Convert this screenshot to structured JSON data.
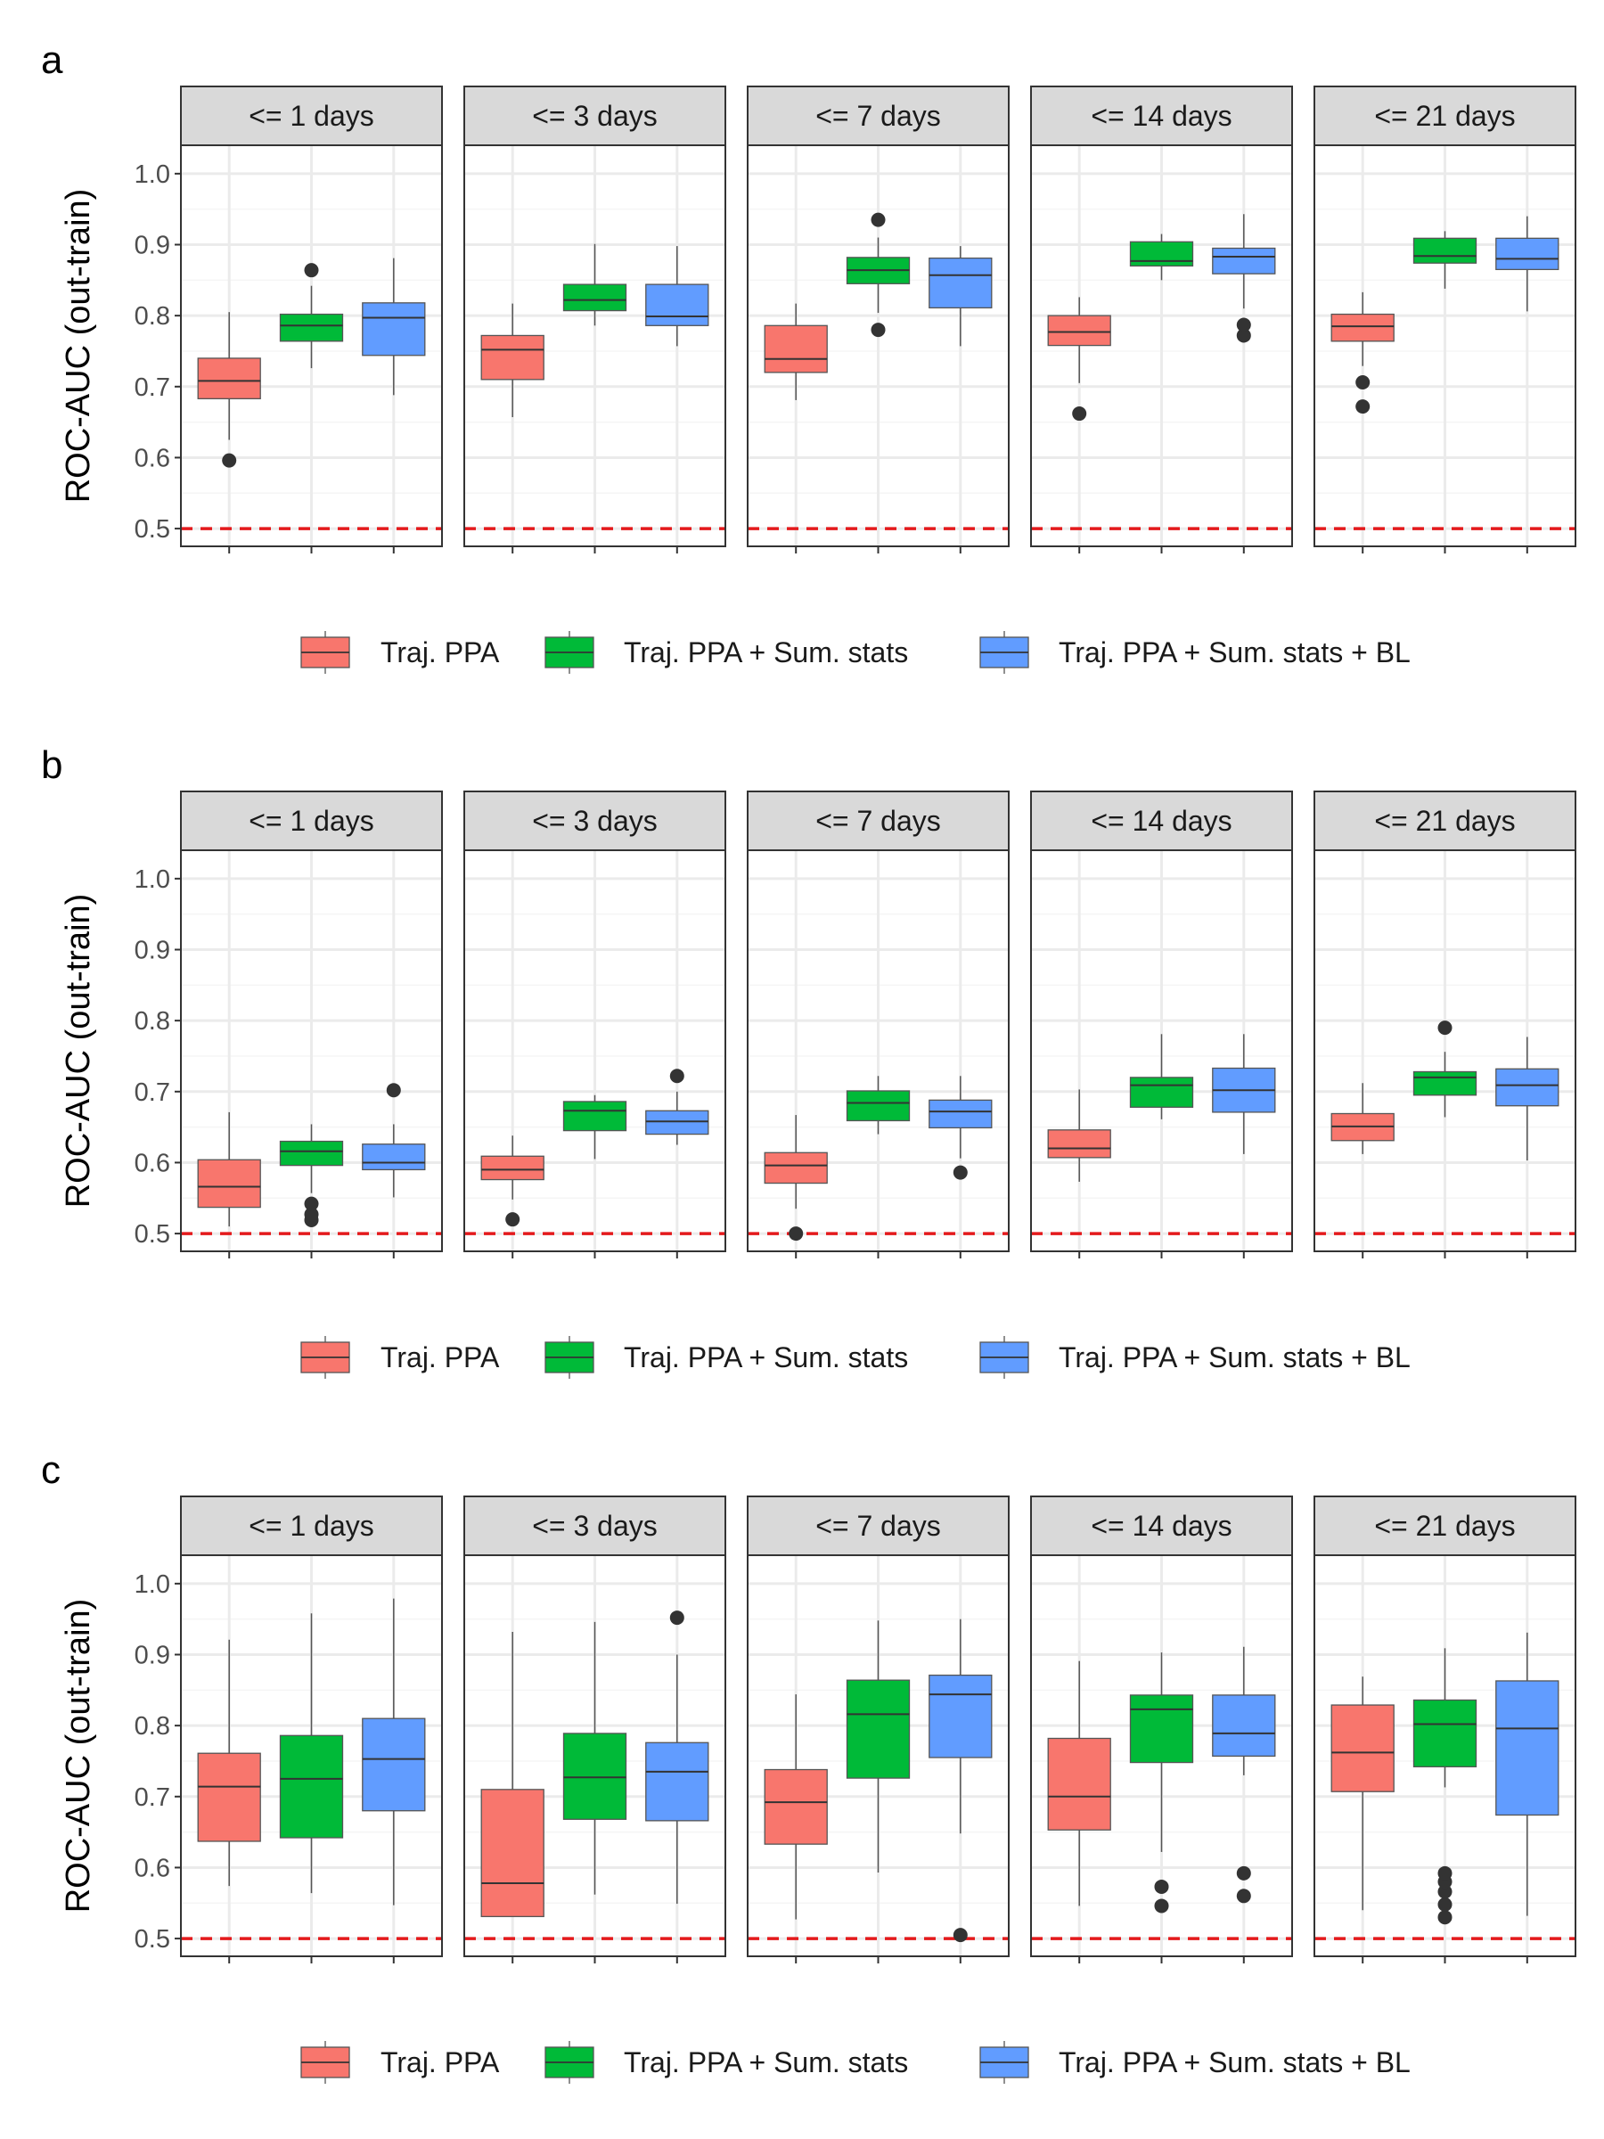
{
  "chart_data": [
    {
      "type": "boxplot",
      "panel_label": "a",
      "facets": [
        "<= 1 days",
        "<= 3 days",
        "<= 7 days",
        "<= 14 days",
        "<= 21 days"
      ],
      "groups": [
        "Traj. PPA",
        "Traj. PPA + Sum. stats",
        "Traj. PPA + Sum. stats + BL"
      ],
      "ylabel": "ROC-AUC (out-train)",
      "ylim": [
        0.475,
        1.04
      ],
      "yticks": [
        "0.5",
        "0.6",
        "0.7",
        "0.8",
        "0.9",
        "1.0"
      ],
      "reference_line": 0.5,
      "boxes": [
        [
          {
            "min": 0.625,
            "q1": 0.683,
            "median": 0.708,
            "q3": 0.74,
            "max": 0.805,
            "outliers": [
              0.596
            ]
          },
          {
            "min": 0.726,
            "q1": 0.764,
            "median": 0.786,
            "q3": 0.802,
            "max": 0.842,
            "outliers": [
              0.864
            ]
          },
          {
            "min": 0.688,
            "q1": 0.744,
            "median": 0.797,
            "q3": 0.818,
            "max": 0.881,
            "outliers": []
          }
        ],
        [
          {
            "min": 0.657,
            "q1": 0.71,
            "median": 0.752,
            "q3": 0.772,
            "max": 0.817,
            "outliers": []
          },
          {
            "min": 0.786,
            "q1": 0.807,
            "median": 0.822,
            "q3": 0.844,
            "max": 0.901,
            "outliers": []
          },
          {
            "min": 0.757,
            "q1": 0.786,
            "median": 0.799,
            "q3": 0.844,
            "max": 0.898,
            "outliers": []
          }
        ],
        [
          {
            "min": 0.681,
            "q1": 0.72,
            "median": 0.739,
            "q3": 0.786,
            "max": 0.817,
            "outliers": []
          },
          {
            "min": 0.804,
            "q1": 0.845,
            "median": 0.864,
            "q3": 0.882,
            "max": 0.91,
            "outliers": [
              0.78,
              0.935
            ]
          },
          {
            "min": 0.757,
            "q1": 0.811,
            "median": 0.857,
            "q3": 0.881,
            "max": 0.898,
            "outliers": []
          }
        ],
        [
          {
            "min": 0.705,
            "q1": 0.758,
            "median": 0.777,
            "q3": 0.8,
            "max": 0.826,
            "outliers": [
              0.662
            ]
          },
          {
            "min": 0.85,
            "q1": 0.87,
            "median": 0.877,
            "q3": 0.904,
            "max": 0.915,
            "outliers": []
          },
          {
            "min": 0.81,
            "q1": 0.859,
            "median": 0.883,
            "q3": 0.895,
            "max": 0.943,
            "outliers": [
              0.772,
              0.787
            ]
          }
        ],
        [
          {
            "min": 0.729,
            "q1": 0.764,
            "median": 0.785,
            "q3": 0.802,
            "max": 0.833,
            "outliers": [
              0.672,
              0.706
            ]
          },
          {
            "min": 0.838,
            "q1": 0.874,
            "median": 0.884,
            "q3": 0.909,
            "max": 0.919,
            "outliers": []
          },
          {
            "min": 0.806,
            "q1": 0.865,
            "median": 0.88,
            "q3": 0.909,
            "max": 0.94,
            "outliers": []
          }
        ]
      ]
    },
    {
      "type": "boxplot",
      "panel_label": "b",
      "facets": [
        "<= 1 days",
        "<= 3 days",
        "<= 7 days",
        "<= 14 days",
        "<= 21 days"
      ],
      "groups": [
        "Traj. PPA",
        "Traj. PPA + Sum. stats",
        "Traj. PPA + Sum. stats + BL"
      ],
      "ylabel": "ROC-AUC (out-train)",
      "ylim": [
        0.475,
        1.04
      ],
      "yticks": [
        "0.5",
        "0.6",
        "0.7",
        "0.8",
        "0.9",
        "1.0"
      ],
      "reference_line": 0.5,
      "boxes": [
        [
          {
            "min": 0.51,
            "q1": 0.537,
            "median": 0.566,
            "q3": 0.604,
            "max": 0.671,
            "outliers": []
          },
          {
            "min": 0.557,
            "q1": 0.596,
            "median": 0.616,
            "q3": 0.63,
            "max": 0.654,
            "outliers": [
              0.519,
              0.527,
              0.542
            ]
          },
          {
            "min": 0.551,
            "q1": 0.59,
            "median": 0.6,
            "q3": 0.626,
            "max": 0.654,
            "outliers": [
              0.702
            ]
          }
        ],
        [
          {
            "min": 0.548,
            "q1": 0.576,
            "median": 0.59,
            "q3": 0.609,
            "max": 0.638,
            "outliers": [
              0.52
            ]
          },
          {
            "min": 0.605,
            "q1": 0.645,
            "median": 0.673,
            "q3": 0.686,
            "max": 0.695,
            "outliers": []
          },
          {
            "min": 0.625,
            "q1": 0.64,
            "median": 0.658,
            "q3": 0.673,
            "max": 0.7,
            "outliers": [
              0.722
            ]
          }
        ],
        [
          {
            "min": 0.535,
            "q1": 0.571,
            "median": 0.596,
            "q3": 0.614,
            "max": 0.667,
            "outliers": [
              0.5
            ]
          },
          {
            "min": 0.64,
            "q1": 0.659,
            "median": 0.684,
            "q3": 0.701,
            "max": 0.722,
            "outliers": []
          },
          {
            "min": 0.606,
            "q1": 0.649,
            "median": 0.672,
            "q3": 0.688,
            "max": 0.722,
            "outliers": [
              0.586
            ]
          }
        ],
        [
          {
            "min": 0.573,
            "q1": 0.607,
            "median": 0.62,
            "q3": 0.646,
            "max": 0.703,
            "outliers": []
          },
          {
            "min": 0.661,
            "q1": 0.678,
            "median": 0.709,
            "q3": 0.72,
            "max": 0.781,
            "outliers": []
          },
          {
            "min": 0.612,
            "q1": 0.671,
            "median": 0.702,
            "q3": 0.733,
            "max": 0.781,
            "outliers": []
          }
        ],
        [
          {
            "min": 0.612,
            "q1": 0.631,
            "median": 0.651,
            "q3": 0.669,
            "max": 0.712,
            "outliers": []
          },
          {
            "min": 0.664,
            "q1": 0.695,
            "median": 0.72,
            "q3": 0.728,
            "max": 0.756,
            "outliers": [
              0.79
            ]
          },
          {
            "min": 0.603,
            "q1": 0.68,
            "median": 0.709,
            "q3": 0.732,
            "max": 0.777,
            "outliers": []
          }
        ]
      ]
    },
    {
      "type": "boxplot",
      "panel_label": "c",
      "facets": [
        "<= 1 days",
        "<= 3 days",
        "<= 7 days",
        "<= 14 days",
        "<= 21 days"
      ],
      "groups": [
        "Traj. PPA",
        "Traj. PPA + Sum. stats",
        "Traj. PPA + Sum. stats + BL"
      ],
      "ylabel": "ROC-AUC (out-train)",
      "ylim": [
        0.475,
        1.04
      ],
      "yticks": [
        "0.5",
        "0.6",
        "0.7",
        "0.8",
        "0.9",
        "1.0"
      ],
      "reference_line": 0.5,
      "boxes": [
        [
          {
            "min": 0.574,
            "q1": 0.637,
            "median": 0.714,
            "q3": 0.761,
            "max": 0.921,
            "outliers": []
          },
          {
            "min": 0.564,
            "q1": 0.642,
            "median": 0.725,
            "q3": 0.786,
            "max": 0.958,
            "outliers": []
          },
          {
            "min": 0.547,
            "q1": 0.68,
            "median": 0.753,
            "q3": 0.81,
            "max": 0.979,
            "outliers": []
          }
        ],
        [
          {
            "min": 0.531,
            "q1": 0.531,
            "median": 0.578,
            "q3": 0.71,
            "max": 0.932,
            "outliers": []
          },
          {
            "min": 0.562,
            "q1": 0.668,
            "median": 0.727,
            "q3": 0.789,
            "max": 0.946,
            "outliers": []
          },
          {
            "min": 0.549,
            "q1": 0.666,
            "median": 0.735,
            "q3": 0.776,
            "max": 0.9,
            "outliers": [
              0.952
            ]
          }
        ],
        [
          {
            "min": 0.527,
            "q1": 0.633,
            "median": 0.692,
            "q3": 0.738,
            "max": 0.844,
            "outliers": []
          },
          {
            "min": 0.593,
            "q1": 0.726,
            "median": 0.816,
            "q3": 0.864,
            "max": 0.948,
            "outliers": []
          },
          {
            "min": 0.648,
            "q1": 0.755,
            "median": 0.844,
            "q3": 0.871,
            "max": 0.95,
            "outliers": [
              0.505
            ]
          }
        ],
        [
          {
            "min": 0.546,
            "q1": 0.653,
            "median": 0.7,
            "q3": 0.782,
            "max": 0.891,
            "outliers": []
          },
          {
            "min": 0.622,
            "q1": 0.748,
            "median": 0.823,
            "q3": 0.843,
            "max": 0.903,
            "outliers": [
              0.546,
              0.573
            ]
          },
          {
            "min": 0.73,
            "q1": 0.757,
            "median": 0.789,
            "q3": 0.843,
            "max": 0.911,
            "outliers": [
              0.56,
              0.592
            ]
          }
        ],
        [
          {
            "min": 0.54,
            "q1": 0.707,
            "median": 0.762,
            "q3": 0.829,
            "max": 0.869,
            "outliers": []
          },
          {
            "min": 0.713,
            "q1": 0.742,
            "median": 0.802,
            "q3": 0.836,
            "max": 0.909,
            "outliers": [
              0.53,
              0.548,
              0.566,
              0.58,
              0.592
            ]
          },
          {
            "min": 0.532,
            "q1": 0.674,
            "median": 0.796,
            "q3": 0.863,
            "max": 0.931,
            "outliers": []
          }
        ]
      ]
    }
  ],
  "legend": {
    "entries": [
      "Traj. PPA",
      "Traj. PPA + Sum. stats",
      "Traj. PPA + Sum. stats + BL"
    ]
  },
  "colors": {
    "series": [
      "#F8766D",
      "#00BA38",
      "#619CFF"
    ],
    "reference_line": "#E41A1C",
    "strip_fill": "#D9D9D9",
    "panel_border": "#333333",
    "grid_major": "#EBEBEB",
    "grid_minor": "#F5F5F5"
  }
}
